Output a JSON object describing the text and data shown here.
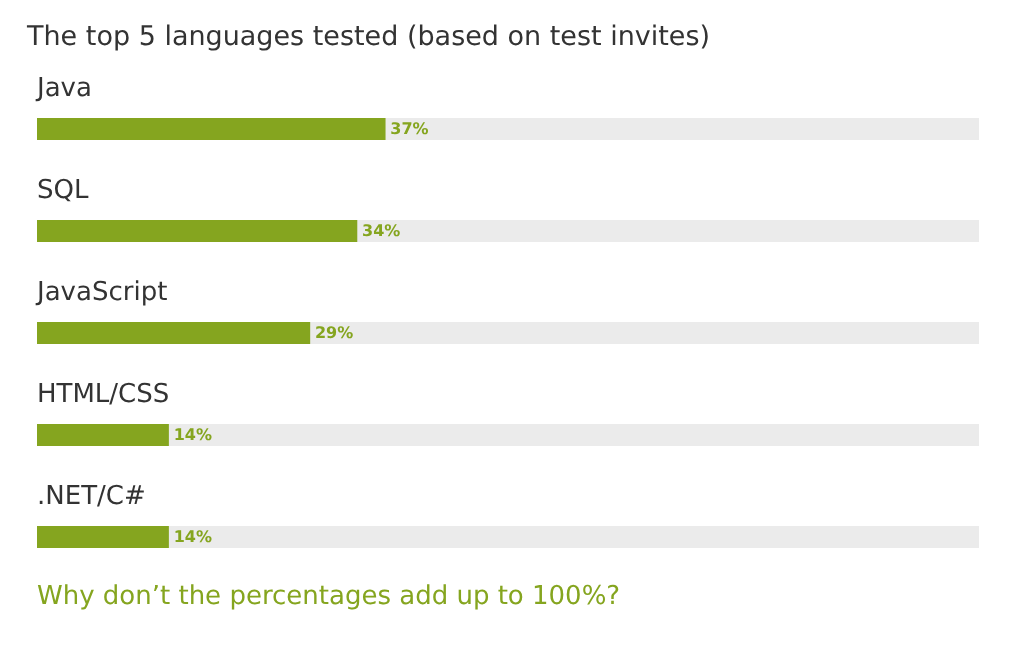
{
  "chart_data": {
    "type": "bar",
    "orientation": "horizontal",
    "title": "The top 5 languages tested (based on test invites)",
    "categories": [
      "Java",
      "SQL",
      "JavaScript",
      "HTML/CSS",
      ".NET/C#"
    ],
    "values": [
      37,
      34,
      29,
      14,
      14
    ],
    "value_labels": [
      "37%",
      "34%",
      "29%",
      "14%",
      "14%"
    ],
    "color": "#85a51f",
    "xlim": [
      0,
      100
    ],
    "tick_labels": false,
    "grid": false,
    "annotations": [
      "Why don’t the percentages add up to 100%?"
    ]
  }
}
